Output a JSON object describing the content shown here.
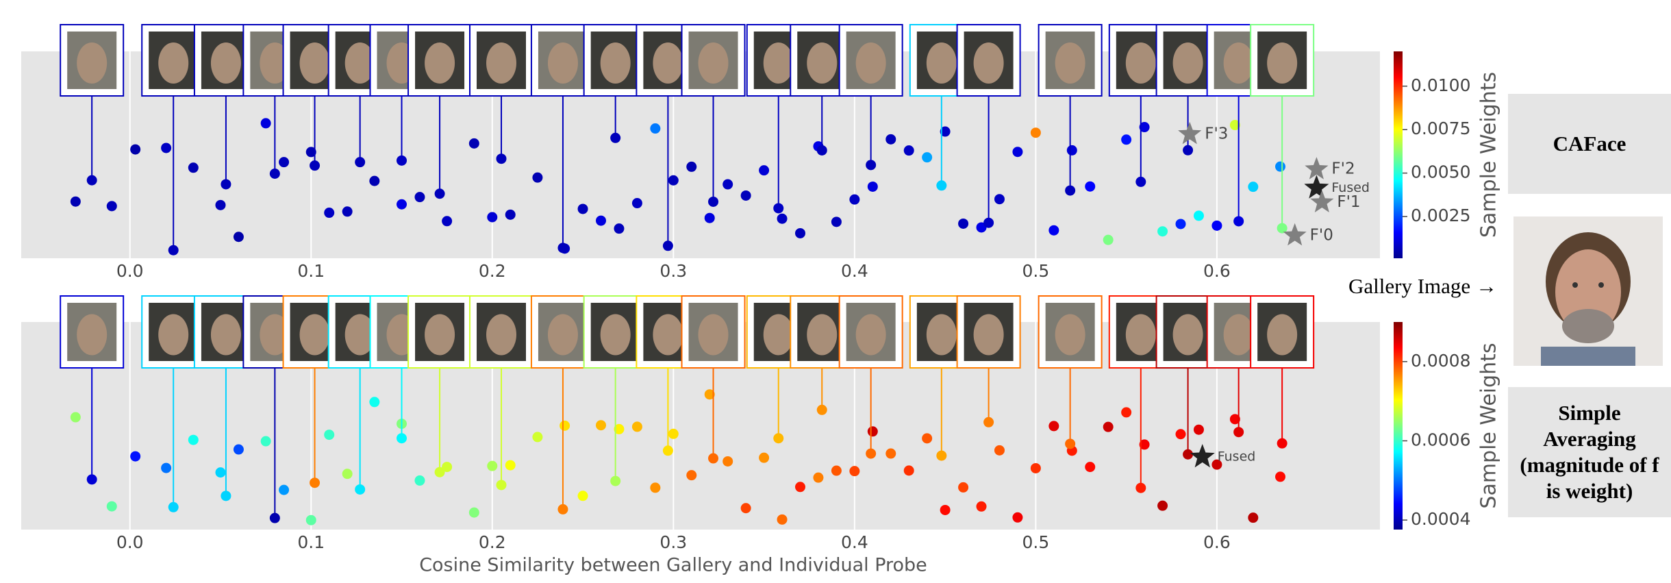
{
  "chart_data": [
    {
      "type": "scatter",
      "xlim": [
        -0.06,
        0.69
      ],
      "xticks": [
        {
          "value": 0,
          "label": "0.0"
        },
        0.1,
        0.2,
        0.3,
        0.4,
        0.5,
        0.6
      ],
      "colorbar_label": "Sample Weights",
      "clim": [
        0.0001,
        0.012
      ],
      "cticks": [
        0.0025,
        {
          "value": 0.005,
          "label": "0.0050"
        },
        0.0075,
        {
          "value": 0.01,
          "label": "0.0100"
        }
      ],
      "colormap": "jet",
      "grid": true,
      "x": [
        -0.03,
        -0.01,
        0.003,
        0.02,
        0.035,
        0.05,
        0.06,
        0.075,
        0.085,
        0.1,
        0.11,
        0.12,
        0.135,
        0.15,
        0.16,
        0.175,
        0.19,
        0.2,
        0.21,
        0.225,
        0.24,
        0.25,
        0.26,
        0.27,
        0.28,
        0.29,
        0.3,
        0.31,
        0.32,
        0.33,
        0.34,
        0.35,
        0.36,
        0.37,
        0.38,
        0.39,
        0.4,
        0.41,
        0.42,
        0.43,
        0.44,
        0.45,
        0.46,
        0.47,
        0.48,
        0.49,
        0.5,
        0.51,
        0.52,
        0.53,
        0.54,
        0.55,
        0.56,
        0.57,
        0.58,
        0.59,
        0.6,
        0.61,
        0.62,
        0.635
      ],
      "weights": [
        0.0007,
        0.0008,
        0.0006,
        0.0009,
        0.0007,
        0.0008,
        0.0006,
        0.0012,
        0.0008,
        0.0007,
        0.0009,
        0.0008,
        0.0007,
        0.0013,
        0.0008,
        0.0009,
        0.0007,
        0.0011,
        0.0008,
        0.0007,
        0.0009,
        0.0008,
        0.0012,
        0.0008,
        0.0009,
        0.003,
        0.0008,
        0.0007,
        0.0012,
        0.0009,
        0.0008,
        0.0011,
        0.0009,
        0.0008,
        0.0013,
        0.0008,
        0.0009,
        0.0012,
        0.0008,
        0.0009,
        0.0035,
        0.0009,
        0.0008,
        0.0013,
        0.0009,
        0.0012,
        0.009,
        0.0014,
        0.0011,
        0.0016,
        0.006,
        0.0018,
        0.0012,
        0.005,
        0.002,
        0.0045,
        0.0015,
        0.007,
        0.004,
        0.0032
      ],
      "probes": {
        "x": [
          -0.021,
          0.024,
          0.053,
          0.08,
          0.102,
          0.127,
          0.15,
          0.171,
          0.205,
          0.239,
          0.268,
          0.297,
          0.322,
          0.358,
          0.382,
          0.409,
          0.448,
          0.474,
          0.519,
          0.558,
          0.584,
          0.612,
          0.636
        ],
        "weights": [
          0.0008,
          0.0008,
          0.0008,
          0.0008,
          0.0008,
          0.0008,
          0.0009,
          0.0008,
          0.0008,
          0.0008,
          0.0008,
          0.0008,
          0.0008,
          0.0009,
          0.0008,
          0.0008,
          0.004,
          0.0009,
          0.0008,
          0.0009,
          0.0008,
          0.0012,
          0.006
        ]
      },
      "markers": [
        {
          "label": "F'3",
          "x": 0.585,
          "color": "#808080"
        },
        {
          "label": "F'2",
          "x": 0.655,
          "color": "#808080"
        },
        {
          "label": "Fused",
          "x": 0.655,
          "color": "#222222"
        },
        {
          "label": "F'1",
          "x": 0.658,
          "color": "#808080"
        },
        {
          "label": "F'0",
          "x": 0.643,
          "color": "#808080"
        }
      ]
    },
    {
      "type": "scatter",
      "xlim": [
        -0.06,
        0.69
      ],
      "xticks": [
        {
          "value": 0,
          "label": "0.0"
        },
        0.1,
        0.2,
        0.3,
        0.4,
        0.5,
        0.6
      ],
      "xlabel": "Cosine Similarity between Gallery and Individual Probe",
      "colorbar_label": "Sample Weights",
      "clim": [
        0.000376,
        0.0009
      ],
      "cticks": [
        0.0004,
        0.0006,
        0.0008
      ],
      "colormap": "jet",
      "grid": true,
      "x": [
        -0.03,
        -0.01,
        0.003,
        0.02,
        0.035,
        0.05,
        0.06,
        0.075,
        0.085,
        0.1,
        0.11,
        0.12,
        0.135,
        0.15,
        0.16,
        0.175,
        0.19,
        0.2,
        0.21,
        0.225,
        0.24,
        0.25,
        0.26,
        0.27,
        0.28,
        0.29,
        0.3,
        0.31,
        0.32,
        0.33,
        0.34,
        0.35,
        0.36,
        0.37,
        0.38,
        0.39,
        0.4,
        0.41,
        0.42,
        0.43,
        0.44,
        0.45,
        0.46,
        0.47,
        0.48,
        0.49,
        0.5,
        0.51,
        0.52,
        0.53,
        0.54,
        0.55,
        0.56,
        0.57,
        0.58,
        0.59,
        0.6,
        0.61,
        0.62,
        0.635
      ],
      "weights": [
        0.00065,
        0.00062,
        0.00045,
        0.0005,
        0.00058,
        0.00055,
        0.00048,
        0.0006,
        0.00052,
        0.00062,
        0.0006,
        0.00066,
        0.00058,
        0.00064,
        0.0006,
        0.00068,
        0.00064,
        0.00066,
        0.0007,
        0.00068,
        0.00072,
        0.0007,
        0.00074,
        0.00071,
        0.00074,
        0.00076,
        0.00072,
        0.00078,
        0.00075,
        0.00077,
        0.0008,
        0.00076,
        0.00078,
        0.00082,
        0.00077,
        0.00079,
        0.0008,
        0.00086,
        0.00078,
        0.00081,
        0.00079,
        0.00083,
        0.0008,
        0.00082,
        0.00079,
        0.00084,
        0.00081,
        0.00085,
        0.00082,
        0.00083,
        0.00086,
        0.00082,
        0.00084,
        0.00087,
        0.00083,
        0.00085,
        0.00086,
        0.00084,
        0.00087,
        0.00083
      ],
      "probes": {
        "x": [
          -0.021,
          0.024,
          0.053,
          0.08,
          0.102,
          0.127,
          0.15,
          0.171,
          0.205,
          0.239,
          0.268,
          0.297,
          0.322,
          0.358,
          0.382,
          0.409,
          0.448,
          0.474,
          0.519,
          0.558,
          0.584,
          0.612,
          0.636
        ],
        "weights": [
          0.00042,
          0.00055,
          0.00055,
          0.0004,
          0.00077,
          0.00056,
          0.00057,
          0.00068,
          0.00068,
          0.00077,
          0.00066,
          0.00072,
          0.00078,
          0.00074,
          0.00076,
          0.00078,
          0.00075,
          0.00077,
          0.00078,
          0.00082,
          0.00087,
          0.00085,
          0.00084
        ]
      },
      "markers": [
        {
          "label": "Fused",
          "x": 0.592,
          "color": "#222222"
        }
      ]
    }
  ],
  "panels": {
    "caface": "CAFace",
    "gallery": "Gallery Image →",
    "averaging": "Simple Averaging (magnitude of f is weight)"
  }
}
